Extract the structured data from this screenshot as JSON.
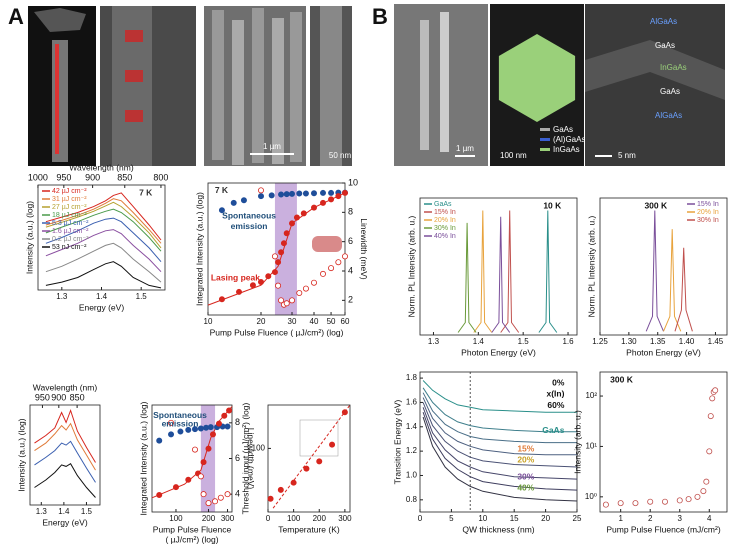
{
  "panels": {
    "a": "A",
    "b": "B"
  },
  "images": {
    "a_scale_sem": "1 µm",
    "a_scale_tem": "50 nm",
    "b_scale_sem": "1 µm",
    "b_scale_hex": "100 nm",
    "b_scale_tem": "5 nm",
    "hex_legend": [
      "GaAs",
      "(Al)GaAs",
      "InGaAs"
    ],
    "tem_layers": [
      "AlGaAs",
      "GaAs",
      "InGaAs",
      "GaAs",
      "AlGaAs"
    ]
  },
  "chart_data": [
    {
      "type": "line",
      "xlabel": "Energy (eV)",
      "x2label": "Wavelength (nm)",
      "ylabel": "Intensity (a.u.) (log)",
      "xlim": [
        1.24,
        1.56
      ],
      "xticks": [
        1.3,
        1.4,
        1.5
      ],
      "x2ticks": [
        1000,
        950,
        900,
        850,
        800
      ],
      "ylim": [
        1,
        10000
      ],
      "ylog": true,
      "legend": "upper left",
      "annotations": [
        {
          "text": "7 K",
          "color": "#333333"
        }
      ],
      "x": [
        1.26,
        1.3,
        1.34,
        1.38,
        1.41,
        1.43,
        1.45,
        1.48,
        1.52,
        1.55
      ],
      "series": [
        {
          "name": "42 µJ cm⁻²",
          "color": "#d7261e",
          "values": [
            400,
            600,
            900,
            1500,
            2500,
            4000,
            5000,
            1500,
            300,
            80
          ]
        },
        {
          "name": "31 µJ cm⁻²",
          "color": "#e07b39",
          "values": [
            300,
            450,
            700,
            1200,
            2000,
            3000,
            2500,
            900,
            200,
            60
          ]
        },
        {
          "name": "27 µJ cm⁻²",
          "color": "#b5a12f",
          "values": [
            250,
            380,
            600,
            1000,
            1600,
            2200,
            1500,
            600,
            150,
            40
          ]
        },
        {
          "name": "18 µJ cm⁻²",
          "color": "#4a9a4a",
          "values": [
            150,
            250,
            400,
            700,
            1000,
            1200,
            900,
            400,
            100,
            30
          ]
        },
        {
          "name": "5.3 µJ cm⁻²",
          "color": "#3a5fb0",
          "values": [
            60,
            100,
            180,
            350,
            500,
            550,
            400,
            150,
            40,
            12
          ]
        },
        {
          "name": "1.6 µJ cm⁻²",
          "color": "#8a4fa0",
          "values": [
            20,
            35,
            60,
            120,
            180,
            200,
            140,
            50,
            15,
            5
          ]
        },
        {
          "name": "0.2 µJ cm⁻²",
          "color": "#888888",
          "values": [
            5,
            8,
            15,
            30,
            50,
            60,
            40,
            15,
            5,
            2
          ]
        },
        {
          "name": "53 nJ cm⁻²",
          "color": "#111111",
          "values": [
            1.5,
            2,
            3,
            6,
            10,
            12,
            8,
            3,
            1.5,
            1.2
          ]
        }
      ]
    },
    {
      "type": "scatter",
      "xlabel": "Pump Pulse Fluence ( µJ/cm²) (log)",
      "ylabel": "Integrated Intensity (a.u.) (log)",
      "y2label": "Linewidth (meV)",
      "xlim": [
        10,
        60
      ],
      "xlog": true,
      "xticks": [
        10,
        20,
        30,
        40,
        50,
        60
      ],
      "ylim": [
        1,
        10000
      ],
      "ylog": true,
      "y2lim": [
        1,
        10
      ],
      "y2ticks": [
        2,
        4,
        6,
        8,
        10
      ],
      "highlight": [
        24,
        32
      ],
      "annotations": [
        {
          "text": "7 K",
          "color": "#333333"
        },
        {
          "text": "Spontaneous",
          "color": "#1f4e79"
        },
        {
          "text": "emission",
          "color": "#1f4e79"
        },
        {
          "text": "Lasing peak",
          "color": "#d7261e"
        }
      ],
      "series": [
        {
          "type": "line",
          "color": "#d7261e",
          "x": [
            10,
            20,
            25,
            30,
            40,
            60
          ],
          "values": [
            2,
            8,
            30,
            600,
            1800,
            5000
          ]
        },
        {
          "color": "#1f4e9a",
          "marker": "filled",
          "x": [
            12,
            14,
            16,
            20,
            23,
            26,
            28,
            30,
            33,
            36,
            40,
            45,
            50,
            55,
            60
          ],
          "values": [
            1500,
            2500,
            3000,
            4000,
            4200,
            4500,
            4600,
            4700,
            4800,
            4800,
            4900,
            5000,
            5000,
            5100,
            5100
          ]
        },
        {
          "color": "#d7261e",
          "marker": "filled",
          "x": [
            12,
            15,
            18,
            20,
            22,
            24,
            25,
            26,
            27,
            28,
            30,
            32,
            35,
            40,
            45,
            50,
            55,
            60
          ],
          "values": [
            3,
            5,
            8,
            10,
            15,
            20,
            40,
            80,
            150,
            300,
            600,
            900,
            1200,
            1800,
            2500,
            3200,
            4000,
            5000
          ]
        },
        {
          "color": "#d7261e",
          "marker": "open",
          "axis": "y2",
          "x": [
            20,
            24,
            25,
            26,
            27,
            28,
            30,
            33,
            36,
            40,
            45,
            50,
            55,
            60
          ],
          "values": [
            9.5,
            5,
            3,
            2,
            1.7,
            1.8,
            2,
            2.5,
            2.8,
            3.2,
            3.8,
            4.2,
            4.6,
            5
          ]
        }
      ]
    },
    {
      "type": "line",
      "xlabel": "Energy (eV)",
      "x2label": "Wavelength (nm)",
      "ylabel": "Intensity (a.u.) (log)",
      "xlim": [
        1.25,
        1.56
      ],
      "xticks": [
        1.3,
        1.4,
        1.5
      ],
      "x2ticks": [
        950,
        900,
        850
      ],
      "ylim": [
        1,
        10000
      ],
      "ylog": true,
      "x": [
        1.27,
        1.32,
        1.36,
        1.39,
        1.41,
        1.43,
        1.46,
        1.5,
        1.54
      ],
      "series": [
        {
          "color": "#d7261e",
          "values": [
            300,
            600,
            1200,
            5000,
            2000,
            6000,
            900,
            200,
            50
          ]
        },
        {
          "color": "#e07b39",
          "values": [
            150,
            300,
            700,
            1500,
            1000,
            1800,
            400,
            100,
            25
          ]
        },
        {
          "color": "#3a5fb0",
          "values": [
            40,
            80,
            150,
            300,
            250,
            350,
            120,
            30,
            8
          ]
        },
        {
          "color": "#111111",
          "values": [
            5,
            10,
            20,
            40,
            35,
            45,
            15,
            5,
            2
          ]
        }
      ]
    },
    {
      "type": "scatter",
      "xlabel": [
        "Pump Pulse Fluence",
        "( µJ/cm²) (log)"
      ],
      "ylabel": "Integrated Intensity (a.u.) (log)",
      "y2label": "Linewidth (meV)",
      "xlim": [
        60,
        330
      ],
      "xlog": true,
      "xticks": [
        100,
        200,
        300
      ],
      "ylim": [
        1,
        1000
      ],
      "ylog": true,
      "y2lim": [
        3,
        9
      ],
      "y2ticks": [
        4,
        6,
        8
      ],
      "highlight": [
        170,
        230
      ],
      "annotations": [
        {
          "text": "Spontaneous",
          "color": "#1f4e79"
        },
        {
          "text": "emission",
          "color": "#1f4e79"
        }
      ],
      "series": [
        {
          "type": "line",
          "color": "#d7261e",
          "x": [
            60,
            120,
            170,
            210,
            250,
            330
          ],
          "values": [
            2.5,
            6,
            15,
            120,
            350,
            900
          ]
        },
        {
          "color": "#1f4e9a",
          "marker": "filled",
          "x": [
            70,
            90,
            110,
            130,
            150,
            170,
            190,
            210,
            240,
            270,
            300
          ],
          "values": [
            100,
            150,
            180,
            200,
            210,
            220,
            230,
            240,
            240,
            250,
            250
          ]
        },
        {
          "color": "#d7261e",
          "marker": "filled",
          "x": [
            70,
            100,
            130,
            160,
            180,
            200,
            220,
            250,
            280,
            310
          ],
          "values": [
            3,
            5,
            8,
            12,
            25,
            60,
            150,
            300,
            500,
            700
          ]
        },
        {
          "color": "#d7261e",
          "marker": "open",
          "axis": "y2",
          "x": [
            90,
            150,
            170,
            180,
            200,
            230,
            260,
            300
          ],
          "values": [
            8,
            6.5,
            5,
            4,
            3.5,
            3.6,
            3.8,
            4
          ]
        }
      ]
    },
    {
      "type": "scatter",
      "xlabel": "Temperature (K)",
      "ylabel": "Threshold input (µJ/cm²) (log)",
      "xlim": [
        0,
        320
      ],
      "xticks": [
        0,
        100,
        200,
        300
      ],
      "ylim": [
        20,
        300
      ],
      "ylog": true,
      "yticks": [
        100
      ],
      "series": [
        {
          "type": "line",
          "dash": true,
          "color": "#d7261e",
          "x": [
            20,
            320
          ],
          "values": [
            22,
            300
          ]
        },
        {
          "color": "#d7261e",
          "marker": "filled",
          "x": [
            10,
            50,
            100,
            150,
            200,
            250,
            300
          ],
          "values": [
            28,
            35,
            42,
            60,
            72,
            110,
            250
          ]
        }
      ]
    },
    {
      "type": "line",
      "xlabel": "Photon Energy (eV)",
      "ylabel": "Norm. PL Intensity (arb. u.)",
      "xlim": [
        1.27,
        1.62
      ],
      "xticks": [
        1.3,
        1.4,
        1.5,
        1.6
      ],
      "ylim": [
        0,
        1.1
      ],
      "legend": "upper left",
      "annotations": [
        {
          "text": "10 K",
          "color": "#111111"
        }
      ],
      "series": [
        {
          "name": "GaAs",
          "color": "#2a8f8a",
          "x": [
            1.535,
            1.551,
            1.555,
            1.559,
            1.575
          ],
          "values": [
            0.02,
            0.1,
            1,
            0.1,
            0.02
          ]
        },
        {
          "name": "15% In",
          "color": "#c0504d",
          "x": [
            1.45,
            1.466,
            1.47,
            1.474,
            1.49
          ],
          "values": [
            0.02,
            0.1,
            1,
            0.1,
            0.02
          ]
        },
        {
          "name": "20% In",
          "color": "#e8a33d",
          "x": [
            1.39,
            1.406,
            1.41,
            1.414,
            1.43
          ],
          "values": [
            0.02,
            0.1,
            1,
            0.1,
            0.02
          ]
        },
        {
          "name": "30% In",
          "color": "#6a9a3a",
          "x": [
            1.355,
            1.371,
            1.375,
            1.379,
            1.395
          ],
          "values": [
            0.02,
            0.1,
            0.9,
            0.1,
            0.02
          ]
        },
        {
          "name": "40% In",
          "color": "#7a4f9a",
          "x": [
            1.43,
            1.446,
            1.45,
            1.454,
            1.47
          ],
          "values": [
            0.02,
            0.1,
            0.95,
            0.1,
            0.02
          ]
        }
      ]
    },
    {
      "type": "line",
      "xlabel": "Photon Energy (eV)",
      "ylabel": "Norm. PL Intensity (arb. u.)",
      "xlim": [
        1.25,
        1.47
      ],
      "xticks": [
        1.25,
        {
          "value": 1.3,
          "label": "1.30"
        },
        1.35,
        {
          "value": 1.4,
          "label": "1.40"
        },
        1.45
      ],
      "ylim": [
        0,
        1.1
      ],
      "legend": "upper right",
      "annotations": [
        {
          "text": "300 K",
          "color": "#111111"
        }
      ],
      "series": [
        {
          "name": "15% In",
          "color": "#7a4f9a",
          "x": [
            1.33,
            1.341,
            1.345,
            1.349,
            1.36
          ],
          "values": [
            0.03,
            0.15,
            1,
            0.15,
            0.03
          ]
        },
        {
          "name": "20% In",
          "color": "#e8a33d",
          "x": [
            1.36,
            1.371,
            1.375,
            1.379,
            1.39
          ],
          "values": [
            0.03,
            0.15,
            0.85,
            0.15,
            0.03
          ]
        },
        {
          "name": "30% In",
          "color": "#c0504d",
          "x": [
            1.38,
            1.391,
            1.395,
            1.399,
            1.41
          ],
          "values": [
            0.03,
            0.2,
            0.7,
            0.2,
            0.03
          ]
        }
      ]
    },
    {
      "type": "line",
      "xlabel": "QW thickness (nm)",
      "ylabel": "Transition Energy (eV)",
      "xlim": [
        0,
        25
      ],
      "xticks": [
        0,
        5,
        10,
        15,
        20,
        25
      ],
      "ylim": [
        0.7,
        1.85
      ],
      "yticks": [
        0.8,
        {
          "value": 1,
          "label": "1.0"
        },
        1.2,
        1.4,
        1.6,
        1.8
      ],
      "vline": 8,
      "annotations": [
        {
          "text": "0%",
          "color": "#111111"
        },
        {
          "text": "x(In)",
          "color": "#111111"
        },
        {
          "text": "60%",
          "color": "#111111"
        },
        {
          "text": "GaAs",
          "color": "#2a8f8a"
        },
        {
          "text": "15%",
          "color": "#e07b39"
        },
        {
          "text": "20%",
          "color": "#c9a227"
        },
        {
          "text": "30%",
          "color": "#7a4f9a"
        },
        {
          "text": "40%",
          "color": "#6a9a3a"
        }
      ],
      "x": [
        0.5,
        2,
        4,
        6,
        8,
        10,
        15,
        20,
        25
      ],
      "series": [
        {
          "color": "#2a8f8a",
          "values": [
            1.78,
            1.7,
            1.63,
            1.58,
            1.56,
            1.54,
            1.53,
            1.52,
            1.52
          ]
        },
        {
          "color": "#3f7f8c",
          "values": [
            1.72,
            1.6,
            1.5,
            1.44,
            1.41,
            1.39,
            1.37,
            1.36,
            1.36
          ]
        },
        {
          "color": "#4a6f88",
          "values": [
            1.68,
            1.53,
            1.42,
            1.36,
            1.32,
            1.3,
            1.28,
            1.27,
            1.27
          ]
        },
        {
          "color": "#4d6080",
          "values": [
            1.64,
            1.47,
            1.35,
            1.28,
            1.24,
            1.21,
            1.18,
            1.17,
            1.17
          ]
        },
        {
          "color": "#4b5275",
          "values": [
            1.6,
            1.41,
            1.28,
            1.2,
            1.15,
            1.12,
            1.09,
            1.08,
            1.07
          ]
        },
        {
          "color": "#46466a",
          "values": [
            1.56,
            1.35,
            1.21,
            1.12,
            1.07,
            1.03,
            0.99,
            0.98,
            0.97
          ]
        },
        {
          "color": "#3e3d5e",
          "values": [
            1.52,
            1.3,
            1.14,
            1.05,
            0.99,
            0.95,
            0.91,
            0.89,
            0.88
          ]
        },
        {
          "color": "#333344",
          "values": [
            1.48,
            1.24,
            1.07,
            0.97,
            0.91,
            0.87,
            0.82,
            0.8,
            0.79
          ]
        }
      ]
    },
    {
      "type": "scatter",
      "xlabel": "Pump Pulse Fluence (mJ/cm²)",
      "ylabel": "Intensity (arb. u.)",
      "xlim": [
        0.3,
        4.6
      ],
      "xticks": [
        1,
        2,
        3,
        4
      ],
      "ylim": [
        0.5,
        300
      ],
      "ylog": true,
      "yticks": [
        {
          "value": 1,
          "label": "10⁰"
        },
        {
          "value": 10,
          "label": "10¹"
        },
        {
          "value": 100,
          "label": "10²"
        }
      ],
      "annotations": [
        {
          "text": "300 K",
          "color": "#111111"
        }
      ],
      "series": [
        {
          "color": "#c0504d",
          "marker": "open",
          "x": [
            0.5,
            1,
            1.5,
            2,
            2.5,
            3,
            3.3,
            3.6,
            3.8,
            3.9,
            4,
            4.05,
            4.1,
            4.15,
            4.2
          ],
          "values": [
            0.7,
            0.75,
            0.75,
            0.8,
            0.8,
            0.85,
            0.9,
            1,
            1.3,
            2,
            8,
            40,
            90,
            120,
            130
          ]
        }
      ]
    }
  ]
}
